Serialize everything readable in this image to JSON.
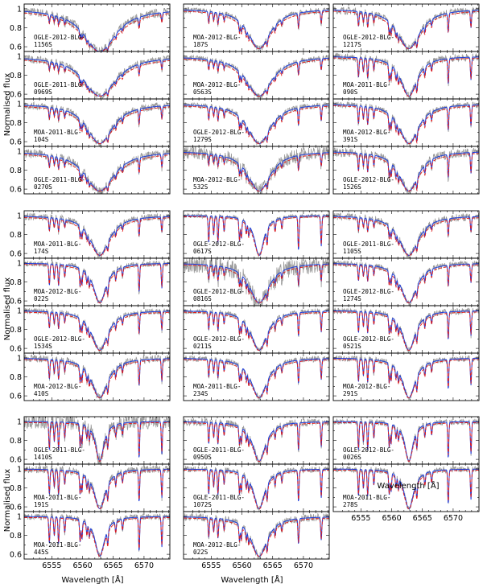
{
  "colors": {
    "observed": "#9a9a9a",
    "model_blue": "#1f3ddc",
    "model_red": "#e31a1a",
    "frame": "#000000"
  },
  "chart_data": {
    "type": "line",
    "ylabel": "Normalised flux",
    "xlabel": "Wavelength [Å]",
    "xlim": [
      6550.5,
      6574.2
    ],
    "ylim": [
      0.55,
      1.05
    ],
    "xticks": [
      "6555",
      "6560",
      "6565",
      "6570"
    ],
    "yticks": [
      "0.6",
      "0.8",
      "1"
    ],
    "line_center": 6562.8,
    "groups": [
      {
        "panels": [
          {
            "label": "OGLE-2012-BLG-1156S",
            "depth": 0.45,
            "width": 10,
            "metal": 0.25,
            "noise": 0.06
          },
          {
            "label": "MOA-2012-BLG-187S",
            "depth": 0.42,
            "width": 7,
            "metal": 0.35,
            "noise": 0.04
          },
          {
            "label": "OGLE-2012-BLG-1217S",
            "depth": 0.42,
            "width": 7,
            "metal": 0.45,
            "noise": 0.05
          },
          {
            "label": "OGLE-2011-BLG-0969S",
            "depth": 0.42,
            "width": 10,
            "metal": 0.25,
            "noise": 0.05
          },
          {
            "label": "MOA-2012-BLG-0563S",
            "depth": 0.42,
            "width": 8,
            "metal": 0.3,
            "noise": 0.04
          },
          {
            "label": "MOA-2011-BLG-090S",
            "depth": 0.42,
            "width": 5,
            "metal": 0.6,
            "noise": 0.05
          },
          {
            "label": "MOA-2011-BLG-104S",
            "depth": 0.42,
            "width": 8,
            "metal": 0.35,
            "noise": 0.05
          },
          {
            "label": "OGLE-2012-BLG-1279S",
            "depth": 0.42,
            "width": 7,
            "metal": 0.4,
            "noise": 0.04
          },
          {
            "label": "MOA-2012-BLG-391S",
            "depth": 0.42,
            "width": 6,
            "metal": 0.55,
            "noise": 0.04
          },
          {
            "label": "OGLE-2011-BLG-0270S",
            "depth": 0.42,
            "width": 9,
            "metal": 0.35,
            "noise": 0.06
          },
          {
            "label": "MOA-2012-BLG-532S",
            "depth": 0.42,
            "width": 7,
            "metal": 0.35,
            "noise": 0.09
          },
          {
            "label": "OGLE-2012-BLG-1526S",
            "depth": 0.42,
            "width": 6,
            "metal": 0.55,
            "noise": 0.06
          }
        ]
      },
      {
        "panels": [
          {
            "label": "MOA-2011-BLG-174S",
            "depth": 0.42,
            "width": 6,
            "metal": 0.4,
            "noise": 0.05
          },
          {
            "label": "OGLE-2012-BLG-0617S",
            "depth": 0.42,
            "width": 3,
            "metal": 0.8,
            "noise": 0.03
          },
          {
            "label": "OGLE-2011-BLG-1105S",
            "depth": 0.42,
            "width": 6,
            "metal": 0.4,
            "noise": 0.05
          },
          {
            "label": "MOA-2012-BLG-022S",
            "depth": 0.42,
            "width": 4,
            "metal": 0.65,
            "noise": 0.04
          },
          {
            "label": "OGLE-2012-BLG-0816S",
            "depth": 0.42,
            "width": 6,
            "metal": 0.45,
            "noise": 0.12
          },
          {
            "label": "OGLE-2012-BLG-1274S",
            "depth": 0.42,
            "width": 5,
            "metal": 0.5,
            "noise": 0.04
          },
          {
            "label": "OGLE-2012-BLG-1534S",
            "depth": 0.42,
            "width": 5,
            "metal": 0.5,
            "noise": 0.04
          },
          {
            "label": "OGLE-2012-BLG-0211S",
            "depth": 0.42,
            "width": 5,
            "metal": 0.55,
            "noise": 0.04
          },
          {
            "label": "OGLE-2012-BLG-0521S",
            "depth": 0.42,
            "width": 4,
            "metal": 0.65,
            "noise": 0.04
          },
          {
            "label": "MOA-2012-BLG-410S",
            "depth": 0.42,
            "width": 5,
            "metal": 0.6,
            "noise": 0.05
          },
          {
            "label": "MOA-2011-BLG-234S",
            "depth": 0.42,
            "width": 5,
            "metal": 0.55,
            "noise": 0.04
          },
          {
            "label": "MOA-2012-BLG-291S",
            "depth": 0.42,
            "width": 4,
            "metal": 0.7,
            "noise": 0.04
          }
        ]
      },
      {
        "panels": [
          {
            "label": "OGLE-2011-BLG-1410S",
            "depth": 0.42,
            "width": 2.5,
            "metal": 0.85,
            "noise": 0.1
          },
          {
            "label": "OGLE-2011-BLG-0950S",
            "depth": 0.42,
            "width": 4,
            "metal": 0.65,
            "noise": 0.05
          },
          {
            "label": "OGLE-2012-BLG-0026S",
            "depth": 0.42,
            "width": 2.5,
            "metal": 0.85,
            "noise": 0.04
          },
          {
            "label": "MOA-2011-BLG-191S",
            "depth": 0.42,
            "width": 3.5,
            "metal": 0.75,
            "noise": 0.05
          },
          {
            "label": "OGLE-2011-BLG-1072S",
            "depth": 0.42,
            "width": 3.5,
            "metal": 0.75,
            "noise": 0.04
          },
          {
            "label": "MOA-2011-BLG-278S",
            "depth": 0.42,
            "width": 3,
            "metal": 0.8,
            "noise": 0.04
          },
          {
            "label": "MOA-2011-BLG-445S",
            "depth": 0.42,
            "width": 3,
            "metal": 0.8,
            "noise": 0.04
          },
          {
            "label": "MOA-2012-BLG-022S",
            "depth": 0.42,
            "width": 5,
            "metal": 0.6,
            "noise": 0.05
          }
        ]
      }
    ]
  }
}
